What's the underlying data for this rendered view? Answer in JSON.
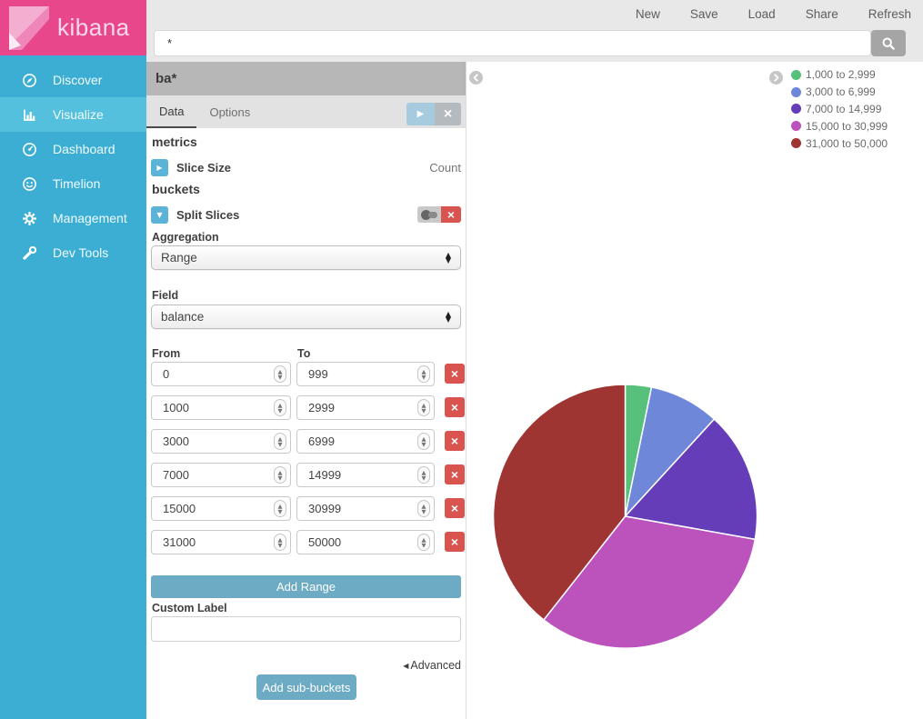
{
  "brand": {
    "name": "kibana",
    "color": "#e8488b"
  },
  "topnav": {
    "items": [
      "New",
      "Save",
      "Load",
      "Share",
      "Refresh"
    ]
  },
  "query": {
    "value": "*"
  },
  "sidebar": {
    "items": [
      {
        "label": "Discover",
        "icon": "compass-icon",
        "active": false
      },
      {
        "label": "Visualize",
        "icon": "bar-chart-icon",
        "active": true
      },
      {
        "label": "Dashboard",
        "icon": "dashboard-icon",
        "active": false
      },
      {
        "label": "Timelion",
        "icon": "timelion-icon",
        "active": false
      },
      {
        "label": "Management",
        "icon": "gear-icon",
        "active": false
      },
      {
        "label": "Dev Tools",
        "icon": "wrench-icon",
        "active": false
      }
    ]
  },
  "panel": {
    "index_pattern": "ba*",
    "tabs": [
      {
        "label": "Data",
        "active": true
      },
      {
        "label": "Options",
        "active": false
      }
    ],
    "metrics_heading": "metrics",
    "slice_size_label": "Slice Size",
    "slice_size_value": "Count",
    "buckets_heading": "buckets",
    "split_slices_label": "Split Slices",
    "aggregation_label": "Aggregation",
    "aggregation_value": "Range",
    "field_label": "Field",
    "field_value": "balance",
    "from_label": "From",
    "to_label": "To",
    "ranges": [
      {
        "from": "0",
        "to": "999"
      },
      {
        "from": "1000",
        "to": "2999"
      },
      {
        "from": "3000",
        "to": "6999"
      },
      {
        "from": "7000",
        "to": "14999"
      },
      {
        "from": "15000",
        "to": "30999"
      },
      {
        "from": "31000",
        "to": "50000"
      }
    ],
    "add_range_label": "Add Range",
    "custom_label_label": "Custom Label",
    "custom_label_value": "",
    "advanced_label": "Advanced",
    "add_sub_buckets_label": "Add sub-buckets"
  },
  "chart_data": {
    "type": "pie",
    "metric": "Count",
    "field": "balance",
    "start_angle_deg": 0,
    "direction": "clockwise",
    "legend_position": "top-right",
    "slices": [
      {
        "label": "1,000 to 2,999",
        "percent": 3.2,
        "color": "#57c17b"
      },
      {
        "label": "3,000 to 6,999",
        "percent": 8.6,
        "color": "#6f87d8"
      },
      {
        "label": "7,000 to 14,999",
        "percent": 16.0,
        "color": "#663db8"
      },
      {
        "label": "15,000 to 30,999",
        "percent": 32.8,
        "color": "#bc52bc"
      },
      {
        "label": "31,000 to 50,000",
        "percent": 39.4,
        "color": "#9e3533"
      }
    ]
  },
  "colors": {
    "sidebar": "#3caed3",
    "sidebar_active": "#55c0de",
    "brand_pink": "#e8488b",
    "teal_button": "#6dabc5",
    "danger_red": "#d9534f",
    "mini_button_blue": "#5bb4d8"
  }
}
